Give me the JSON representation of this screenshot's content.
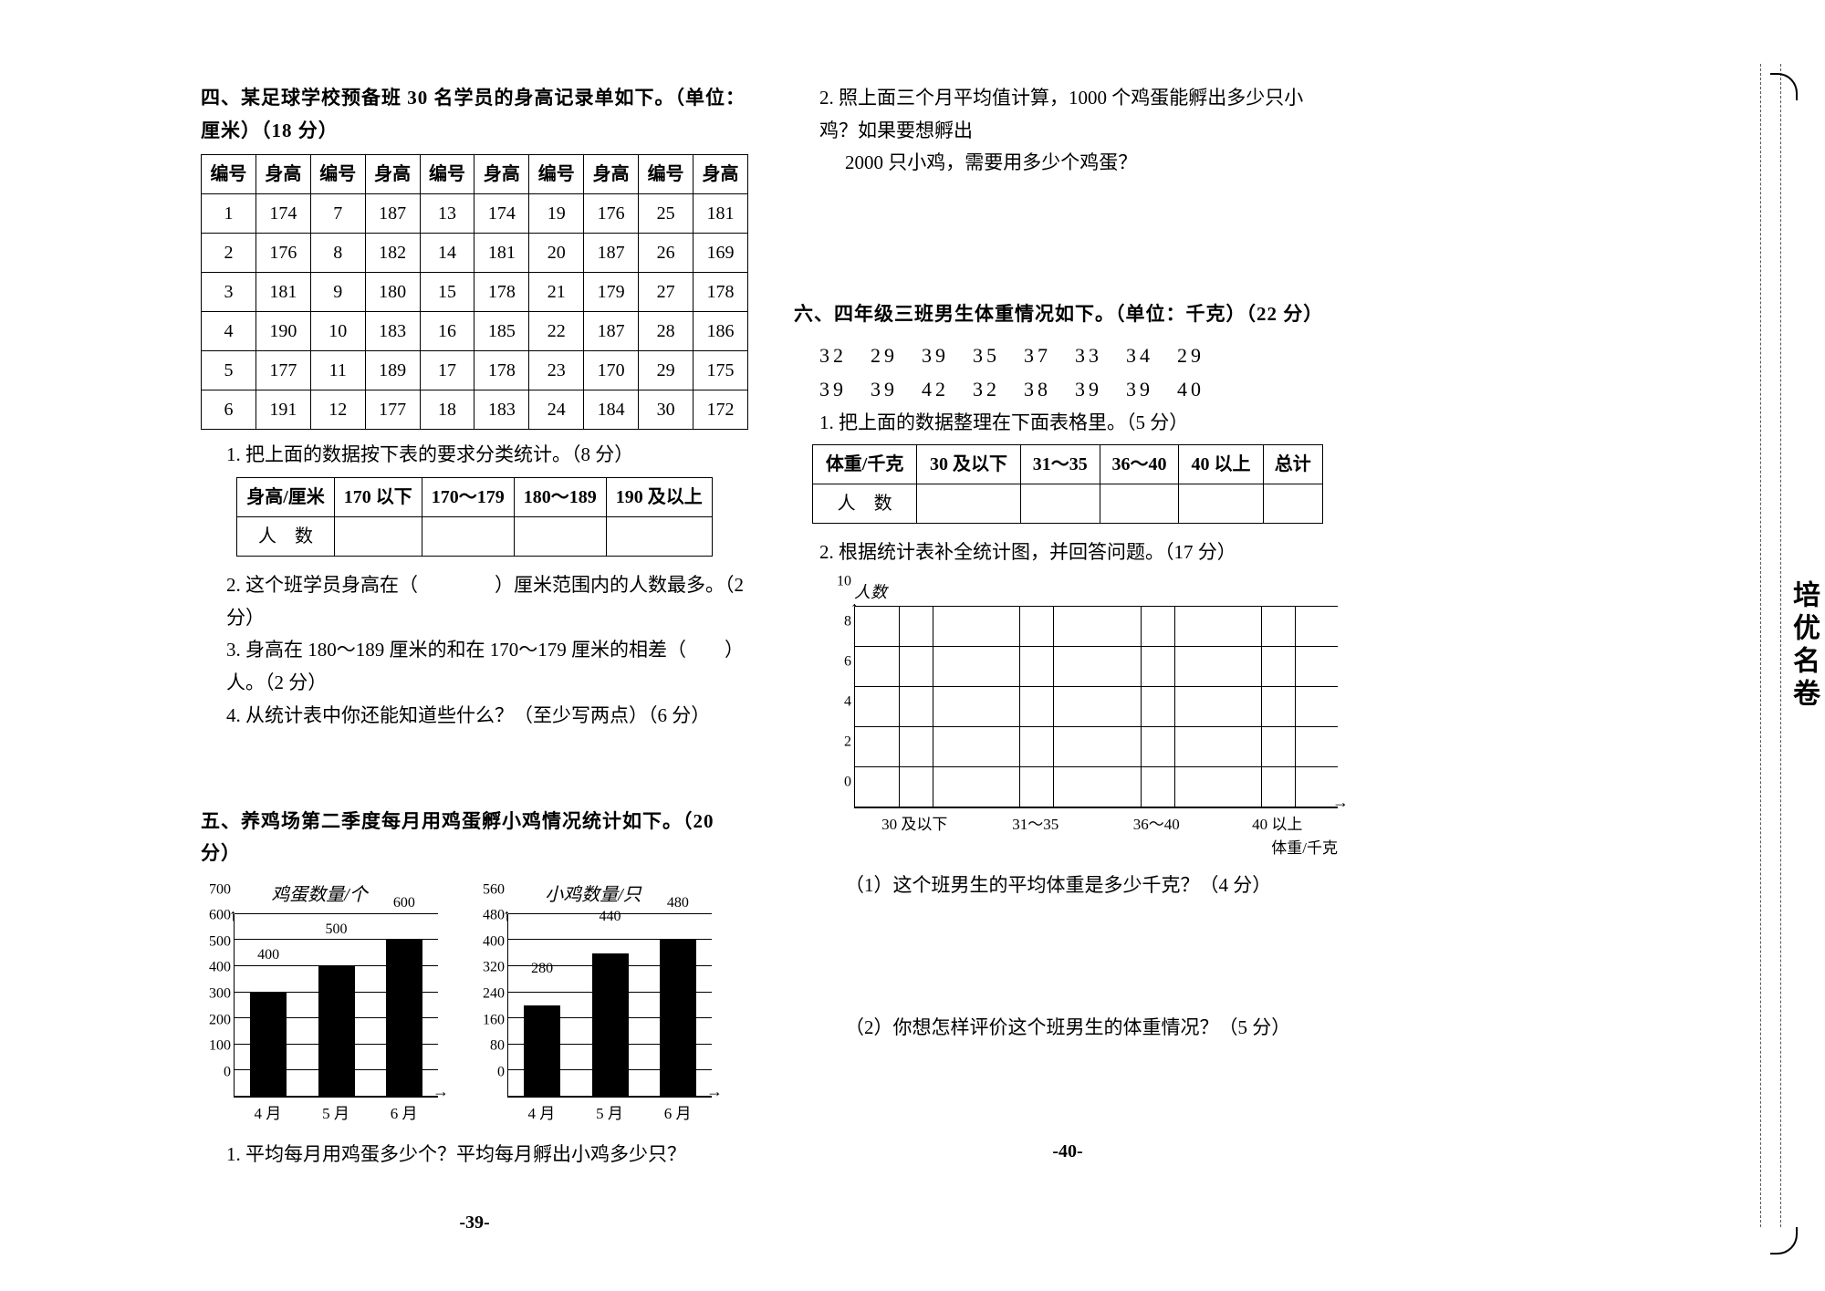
{
  "page_numbers": {
    "left": "-39-",
    "right": "-40-"
  },
  "section4": {
    "title": "四、某足球学校预备班 30 名学员的身高记录单如下。（单位：厘米）（18 分）",
    "headers": [
      "编号",
      "身高",
      "编号",
      "身高",
      "编号",
      "身高",
      "编号",
      "身高",
      "编号",
      "身高"
    ],
    "rows": [
      [
        "1",
        "174",
        "7",
        "187",
        "13",
        "174",
        "19",
        "176",
        "25",
        "181"
      ],
      [
        "2",
        "176",
        "8",
        "182",
        "14",
        "181",
        "20",
        "187",
        "26",
        "169"
      ],
      [
        "3",
        "181",
        "9",
        "180",
        "15",
        "178",
        "21",
        "179",
        "27",
        "178"
      ],
      [
        "4",
        "190",
        "10",
        "183",
        "16",
        "185",
        "22",
        "187",
        "28",
        "186"
      ],
      [
        "5",
        "177",
        "11",
        "189",
        "17",
        "178",
        "23",
        "170",
        "29",
        "175"
      ],
      [
        "6",
        "191",
        "12",
        "177",
        "18",
        "183",
        "24",
        "184",
        "30",
        "172"
      ]
    ],
    "q1": "1. 把上面的数据按下表的要求分类统计。（8 分）",
    "summary": {
      "row_label": "身高/厘米",
      "cols": [
        "170 以下",
        "170～179",
        "180～189",
        "190 及以上"
      ],
      "count_label": "人　数"
    },
    "q2": "2. 这个班学员身高在（　　　　）厘米范围内的人数最多。（2 分）",
    "q3": "3. 身高在 180～189 厘米的和在 170～179 厘米的相差（　　）人。（2 分）",
    "q4": "4. 从统计表中你还能知道些什么？（至少写两点）（6 分）"
  },
  "section5": {
    "title": "五、养鸡场第二季度每月用鸡蛋孵小鸡情况统计如下。（20 分）",
    "chart_left": {
      "title": "鸡蛋数量/个",
      "categories": [
        "4 月",
        "5 月",
        "6 月"
      ],
      "values": [
        400,
        500,
        600
      ],
      "ylim": [
        0,
        700
      ],
      "ytick_step": 100,
      "bar_color": "#000000"
    },
    "chart_right": {
      "title": "小鸡数量/只",
      "categories": [
        "4 月",
        "5 月",
        "6 月"
      ],
      "values": [
        280,
        440,
        480
      ],
      "ylim": [
        0,
        560
      ],
      "ytick_step": 80,
      "bar_color": "#000000"
    },
    "q1": "1. 平均每月用鸡蛋多少个？平均每月孵出小鸡多少只？",
    "q2_a": "2. 照上面三个月平均值计算，1000 个鸡蛋能孵出多少只小鸡？如果要想孵出",
    "q2_b": "2000 只小鸡，需要用多少个鸡蛋？"
  },
  "section6": {
    "title": "六、四年级三班男生体重情况如下。（单位：千克）（22 分）",
    "weights_row1": "32　29　39　35　37　33　34　29",
    "weights_row2": "39　39　42　32　38　39　39　40",
    "q1": "1. 把上面的数据整理在下面表格里。（5 分）",
    "summary": {
      "row_label": "体重/千克",
      "cols": [
        "30 及以下",
        "31～35",
        "36～40",
        "40 以上",
        "总计"
      ],
      "count_label": "人　数"
    },
    "q2": "2. 根据统计表补全统计图，并回答问题。（17 分）",
    "hist": {
      "ytitle": "人数",
      "xtitle": "体重/千克",
      "categories": [
        "30 及以下",
        "31～35",
        "36～40",
        "40 以上"
      ],
      "ylim": [
        0,
        10
      ],
      "ytick_step": 2
    },
    "q2_1": "（1）这个班男生的平均体重是多少千克？（4 分）",
    "q2_2": "（2）你想怎样评价这个班男生的体重情况？（5 分）"
  },
  "logo_text": "培优名卷"
}
